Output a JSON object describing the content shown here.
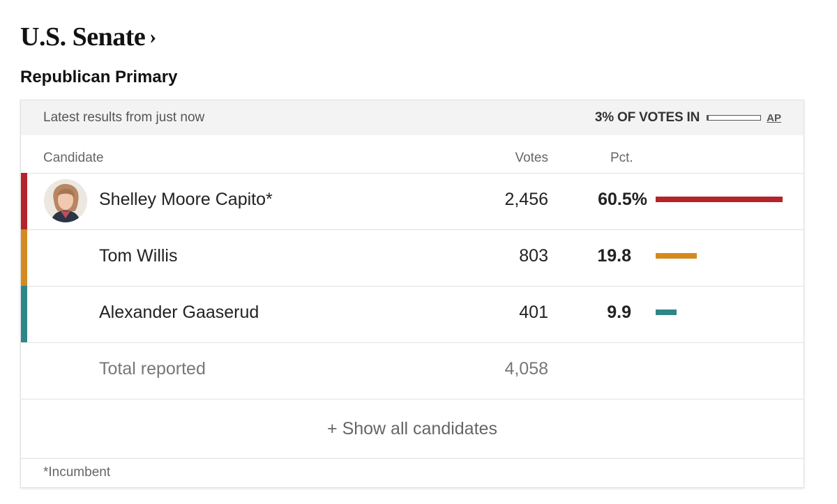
{
  "race": {
    "title": "U.S. Senate",
    "title_chevron": "›",
    "subtitle": "Republican Primary"
  },
  "status": {
    "latest": "Latest results from just now",
    "votes_in": "3% OF VOTES IN",
    "votes_in_fraction": 0.03,
    "source": "AP"
  },
  "columns": {
    "candidate": "Candidate",
    "votes": "Votes",
    "pct": "Pct."
  },
  "candidates": [
    {
      "name": "Shelley Moore Capito*",
      "votes": "2,456",
      "pct": "60.5%",
      "pct_value": 60.5,
      "color": "#b5232b",
      "has_photo": true
    },
    {
      "name": "Tom Willis",
      "votes": "803",
      "pct": "19.8",
      "pct_value": 19.8,
      "color": "#d38a1e",
      "has_photo": false
    },
    {
      "name": "Alexander Gaaserud",
      "votes": "401",
      "pct": "9.9",
      "pct_value": 9.9,
      "color": "#2e8687",
      "has_photo": false
    }
  ],
  "total": {
    "label": "Total reported",
    "votes": "4,058"
  },
  "show_all": "+ Show all candidates",
  "footnote": "*Incumbent"
}
